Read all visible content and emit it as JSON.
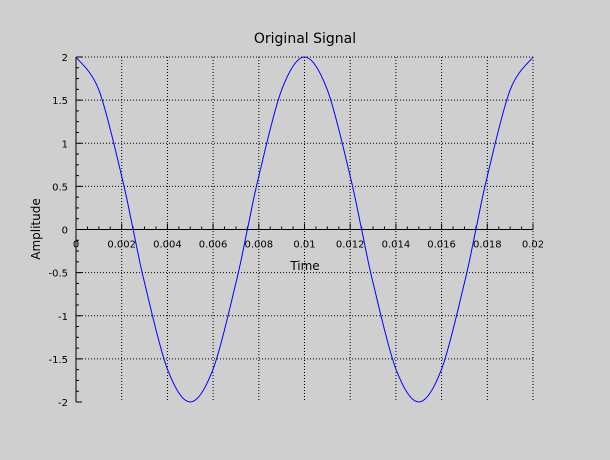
{
  "chart_data": {
    "type": "line",
    "title": "Original Signal",
    "xlabel": "Time",
    "ylabel": "Amplitude",
    "xlim": [
      0,
      0.02
    ],
    "ylim": [
      -2,
      2
    ],
    "x_ticks": [
      "0",
      "0.002",
      "0.004",
      "0.006",
      "0.008",
      "0.01",
      "0.012",
      "0.014",
      "0.016",
      "0.018",
      "0.02"
    ],
    "y_ticks": [
      "2",
      "1.5",
      "1",
      "0.5",
      "0",
      "-0.5",
      "-1",
      "-1.5",
      "-2"
    ],
    "grid": true,
    "series": [
      {
        "color": "#0000ff",
        "x": [
          0,
          0.001,
          0.002,
          0.0025,
          0.003,
          0.004,
          0.005,
          0.006,
          0.007,
          0.0075,
          0.008,
          0.009,
          0.01,
          0.011,
          0.012,
          0.0125,
          0.013,
          0.014,
          0.015,
          0.016,
          0.017,
          0.0175,
          0.018,
          0.019,
          0.02
        ],
        "values": [
          2,
          1.618,
          0.618,
          0,
          -0.618,
          -1.618,
          -2,
          -1.618,
          -0.618,
          0,
          0.618,
          1.618,
          2,
          1.618,
          0.618,
          0,
          -0.618,
          -1.618,
          -2,
          -1.618,
          -0.618,
          0,
          0.618,
          1.618,
          2
        ]
      }
    ]
  },
  "colors": {
    "background": "#cfcfcf",
    "axis": "#000000",
    "grid": "#000000",
    "line": "#0000ff"
  }
}
